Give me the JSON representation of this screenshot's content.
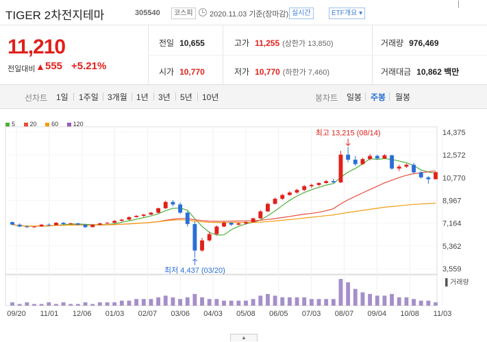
{
  "header": {
    "title": "TIGER 2차전지테마",
    "code": "305540",
    "market": "코스피",
    "date_text": "2020.11.03 기준(장마감)",
    "realtime_label": "실시간",
    "etf_label": "ETF개요",
    "more_label": "|"
  },
  "price": {
    "current": "11,210",
    "change_label": "전일대비",
    "change_arrow": "▲",
    "change_value": "555",
    "change_pct": "+5.21%"
  },
  "info": {
    "prev_close_label": "전일",
    "prev_close": "10,655",
    "high_label": "고가",
    "high": "11,255",
    "upper_limit": "(상한가 13,850)",
    "volume_label": "거래량",
    "volume": "976,469",
    "open_label": "시가",
    "open": "10,770",
    "low_label": "저가",
    "low": "10,770",
    "lower_limit": "(하한가 7,460)",
    "amount_label": "거래대금",
    "amount": "10,862 백만"
  },
  "periods": {
    "line_label": "선차트",
    "line_items": [
      "1일",
      "1주일",
      "3개월",
      "1년",
      "3년",
      "5년",
      "10년"
    ],
    "candle_label": "봉차트",
    "candle_items": [
      "일봉",
      "주봉",
      "월봉"
    ],
    "candle_selected": "주봉"
  },
  "legend": [
    {
      "label": "5",
      "color": "#4caf3a"
    },
    {
      "label": "20",
      "color": "#e74c3c"
    },
    {
      "label": "60",
      "color": "#f39c12"
    },
    {
      "label": "120",
      "color": "#9b59b6"
    }
  ],
  "colors": {
    "up": "#e0201b",
    "down": "#2a6fd6"
  },
  "chart_data": {
    "type": "candlestick",
    "title": "주봉",
    "y_ticks": [
      "14,375",
      "12,572",
      "10,770",
      "8,967",
      "7,164",
      "5,362",
      "3,559"
    ],
    "ylim": [
      3559,
      14375
    ],
    "x_ticks": [
      "09/20",
      "11/01",
      "12/06",
      "01/03",
      "02/07",
      "03/06",
      "04/03",
      "05/08",
      "06/05",
      "07/03",
      "08/07",
      "09/04",
      "10/08",
      "11/03"
    ],
    "max_annotation": "최고 13,215 (08/14)",
    "min_annotation": "최저 4,437 (03/20)",
    "volume_label": "거래량",
    "candles": [
      [
        7250,
        7300,
        7000,
        7050
      ],
      [
        7050,
        7150,
        6850,
        6900
      ],
      [
        6900,
        7000,
        6800,
        6850
      ],
      [
        6850,
        6950,
        6800,
        6900
      ],
      [
        6900,
        7100,
        6880,
        7050
      ],
      [
        7050,
        7150,
        6950,
        7000
      ],
      [
        7000,
        7250,
        7000,
        7200
      ],
      [
        7200,
        7250,
        7050,
        7100
      ],
      [
        7100,
        7200,
        7050,
        7150
      ],
      [
        7150,
        7200,
        7000,
        7050
      ],
      [
        7050,
        7100,
        6800,
        6850
      ],
      [
        6850,
        7100,
        6850,
        7050
      ],
      [
        7050,
        7200,
        7000,
        7150
      ],
      [
        7150,
        7250,
        7100,
        7200
      ],
      [
        7200,
        7400,
        7150,
        7350
      ],
      [
        7350,
        7500,
        7300,
        7450
      ],
      [
        7450,
        7700,
        7400,
        7650
      ],
      [
        7650,
        7800,
        7600,
        7750
      ],
      [
        7750,
        7900,
        7650,
        7850
      ],
      [
        7850,
        8050,
        7800,
        8000
      ],
      [
        8000,
        8400,
        7950,
        8350
      ],
      [
        8350,
        8950,
        8300,
        8850
      ],
      [
        8850,
        9000,
        8500,
        8650
      ],
      [
        8650,
        8800,
        7900,
        8000
      ],
      [
        8000,
        8100,
        6900,
        7100
      ],
      [
        7100,
        7300,
        4437,
        5000
      ],
      [
        5000,
        6000,
        4900,
        5800
      ],
      [
        5800,
        6500,
        5700,
        6300
      ],
      [
        6300,
        7000,
        6200,
        6900
      ],
      [
        6900,
        7300,
        6850,
        7200
      ],
      [
        7200,
        7250,
        6950,
        7050
      ],
      [
        7050,
        7250,
        7000,
        7150
      ],
      [
        7150,
        7300,
        7050,
        7250
      ],
      [
        7250,
        7600,
        7200,
        7550
      ],
      [
        7550,
        8200,
        7500,
        8100
      ],
      [
        8100,
        8800,
        8050,
        8700
      ],
      [
        8700,
        9200,
        8650,
        9100
      ],
      [
        9100,
        9500,
        9000,
        9400
      ],
      [
        9400,
        9700,
        9350,
        9600
      ],
      [
        9600,
        9900,
        9500,
        9800
      ],
      [
        9800,
        10200,
        9700,
        10100
      ],
      [
        10100,
        10300,
        9950,
        10200
      ],
      [
        10200,
        10400,
        10100,
        10350
      ],
      [
        10350,
        10600,
        10300,
        10500
      ],
      [
        10500,
        10700,
        10350,
        10400
      ],
      [
        10400,
        12900,
        10350,
        12600
      ],
      [
        12600,
        13215,
        12000,
        12200
      ],
      [
        12200,
        12500,
        11700,
        11850
      ],
      [
        11850,
        12350,
        11800,
        12250
      ],
      [
        12250,
        12650,
        12150,
        12500
      ],
      [
        12500,
        12600,
        12200,
        12300
      ],
      [
        12300,
        12650,
        12250,
        12550
      ],
      [
        12550,
        12600,
        11400,
        11500
      ],
      [
        11500,
        11800,
        11300,
        11650
      ],
      [
        11650,
        11900,
        11550,
        11800
      ],
      [
        11800,
        11950,
        11100,
        11200
      ],
      [
        11200,
        11300,
        10700,
        10800
      ],
      [
        10800,
        10900,
        10300,
        10650
      ],
      [
        10650,
        11255,
        10650,
        11210
      ]
    ],
    "volumes": [
      2,
      1,
      2,
      1,
      1,
      2,
      1,
      2,
      1,
      1,
      2,
      1,
      2,
      2,
      2,
      3,
      3,
      4,
      4,
      4,
      5,
      6,
      5,
      4,
      5,
      7,
      5,
      4,
      4,
      3,
      3,
      3,
      3,
      4,
      6,
      7,
      6,
      5,
      5,
      5,
      5,
      4,
      4,
      4,
      4,
      16,
      14,
      10,
      8,
      7,
      6,
      6,
      7,
      5,
      5,
      4,
      3,
      3,
      2
    ]
  }
}
